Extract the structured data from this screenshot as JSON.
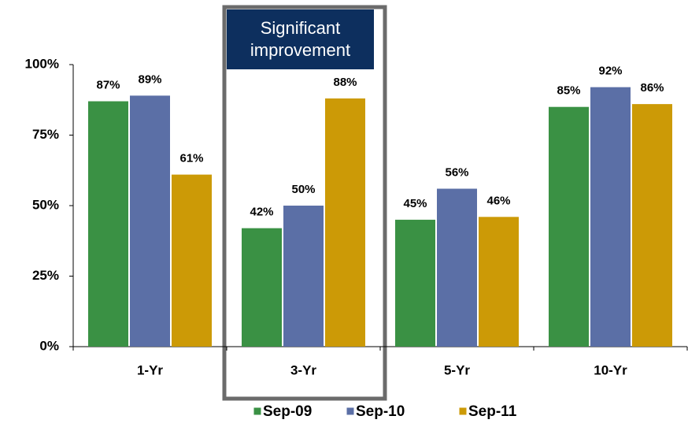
{
  "chart_data": {
    "type": "bar",
    "categories": [
      "1-Yr",
      "3-Yr",
      "5-Yr",
      "10-Yr"
    ],
    "series": [
      {
        "name": "Sep-09",
        "color": "#3a9144",
        "values": [
          87,
          42,
          45,
          85
        ],
        "value_labels": [
          "87%",
          "42%",
          "45%",
          "85%"
        ]
      },
      {
        "name": "Sep-10",
        "color": "#5b6fa6",
        "values": [
          89,
          50,
          56,
          92
        ],
        "value_labels": [
          "89%",
          "50%",
          "56%",
          "92%"
        ]
      },
      {
        "name": "Sep-11",
        "color": "#cc9a06",
        "values": [
          61,
          88,
          46,
          86
        ],
        "value_labels": [
          "61%",
          "88%",
          "46%",
          "86%"
        ]
      }
    ],
    "ylim": [
      0,
      100
    ],
    "yticks": [
      {
        "value": 0,
        "label": "0%"
      },
      {
        "value": 25,
        "label": "25%"
      },
      {
        "value": 50,
        "label": "50%"
      },
      {
        "value": 75,
        "label": "75%"
      },
      {
        "value": 100,
        "label": "100%"
      }
    ],
    "annotation": "Significant improvement"
  }
}
